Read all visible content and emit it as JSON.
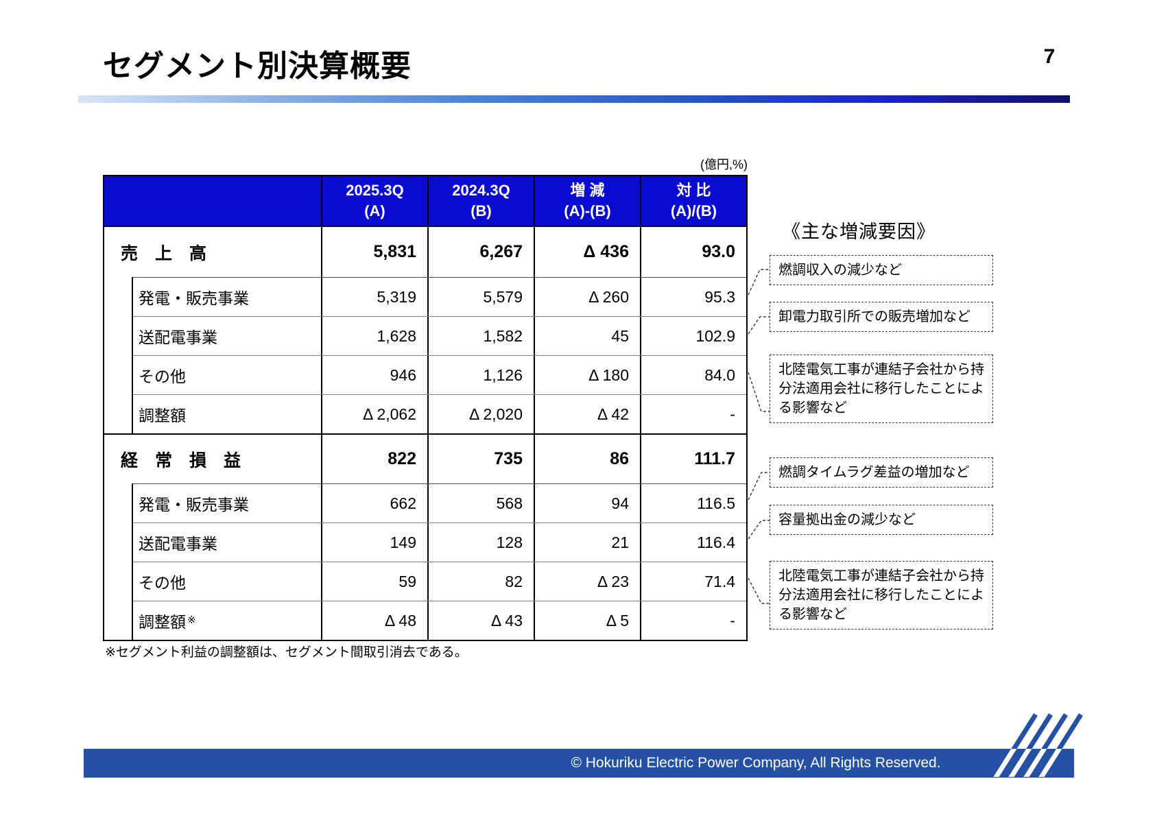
{
  "page": {
    "number": "7",
    "title": "セグメント別決算概要"
  },
  "table": {
    "unit_label": "(億円,%)",
    "header": [
      {
        "line1": "2025.3Q",
        "line2": "(A)"
      },
      {
        "line1": "2024.3Q",
        "line2": "(B)"
      },
      {
        "line1": "増 減",
        "line2": "(A)-(B)"
      },
      {
        "line1": "対 比",
        "line2": "(A)/(B)"
      }
    ],
    "rows": [
      {
        "label": "売　上　高",
        "type": "section",
        "sup": "",
        "values": [
          "5,831",
          "6,267",
          "Δ 436",
          "93.0"
        ]
      },
      {
        "label": "発電・販売事業",
        "type": "sub",
        "sup": "",
        "values": [
          "5,319",
          "5,579",
          "Δ 260",
          "95.3"
        ]
      },
      {
        "label": "送配電事業",
        "type": "sub",
        "sup": "",
        "values": [
          "1,628",
          "1,582",
          "45",
          "102.9"
        ]
      },
      {
        "label": "その他",
        "type": "sub",
        "sup": "",
        "values": [
          "946",
          "1,126",
          "Δ 180",
          "84.0"
        ]
      },
      {
        "label": "調整額",
        "type": "sub",
        "sup": "",
        "values": [
          "Δ 2,062",
          "Δ 2,020",
          "Δ 42",
          "-"
        ]
      },
      {
        "label": "経　常　損　益",
        "type": "section",
        "sup": "",
        "values": [
          "822",
          "735",
          "86",
          "111.7"
        ]
      },
      {
        "label": "発電・販売事業",
        "type": "sub",
        "sup": "",
        "values": [
          "662",
          "568",
          "94",
          "116.5"
        ]
      },
      {
        "label": "送配電事業",
        "type": "sub",
        "sup": "",
        "values": [
          "149",
          "128",
          "21",
          "116.4"
        ]
      },
      {
        "label": "その他",
        "type": "sub",
        "sup": "",
        "values": [
          "59",
          "82",
          "Δ 23",
          "71.4"
        ]
      },
      {
        "label": "調整額",
        "type": "sub",
        "sup": "※",
        "values": [
          "Δ 48",
          "Δ 43",
          "Δ 5",
          "-"
        ]
      }
    ],
    "footnote": "※セグメント利益の調整額は、セグメント間取引消去である。"
  },
  "factors": {
    "heading": "《主な増減要因》",
    "boxes": [
      "燃調収入の減少など",
      "卸電力取引所での販売増加など",
      "北陸電気工事が連結子会社から持分法適用会社に移行したことによる影響など",
      "燃調タイムラグ差益の増加など",
      "容量拠出金の減少など",
      "北陸電気工事が連結子会社から持分法適用会社に移行したことによる影響など"
    ]
  },
  "footer": {
    "copyright": "© Hokuriku Electric Power Company, All  Rights  Reserved."
  },
  "colors": {
    "table_header_bg": "#0a0ad2",
    "table_header_text": "#ffffff",
    "footer_band_blue": "#2451a3",
    "title_rule_light": "#d9e5f6",
    "title_rule_dark": "#101070"
  }
}
